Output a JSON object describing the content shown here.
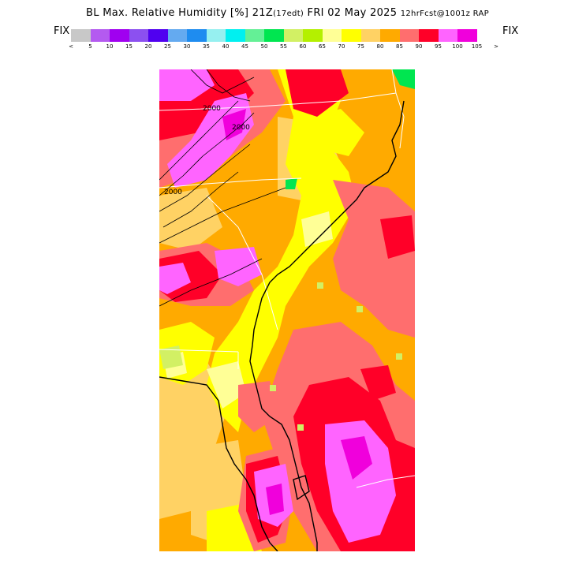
{
  "header": {
    "title_main": "BL Max. Relative Humidity [%] 21Z",
    "title_paren": "(17edt)",
    "title_date": " FRI 02 May 2025 ",
    "title_fcst": "12hrFcst@1001z RAP"
  },
  "legend": {
    "fix_left": "FIX",
    "fix_right": "FIX",
    "colors": [
      "#c8c8c8",
      "#b45af0",
      "#a000f0",
      "#8c50f0",
      "#5000f0",
      "#64aaf0",
      "#1e8cf0",
      "#96f0f0",
      "#00f0f0",
      "#64f096",
      "#00e650",
      "#d2f064",
      "#b4f000",
      "#ffff96",
      "#ffff00",
      "#ffd264",
      "#ffaa00",
      "#ff6e6e",
      "#ff0028",
      "#ff64ff",
      "#f000dc"
    ],
    "tick_labels": [
      "<",
      "5",
      "10",
      "15",
      "20",
      "25",
      "30",
      "35",
      "40",
      "45",
      "50",
      "55",
      "60",
      "65",
      "70",
      "75",
      "80",
      "85",
      "90",
      "95",
      "100",
      "105",
      ">"
    ]
  },
  "map": {
    "field_colors": {
      "base": "#ffaa00",
      "rh75": "#ffd264",
      "rh70": "#ffff00",
      "rh65": "#ffff96",
      "rh85": "#ff6e6e",
      "rh90": "#ff0028",
      "rh95": "#ff64ff",
      "rh100": "#f000dc",
      "green_light": "#d2f064",
      "green": "#00e650"
    },
    "contour_labels": [
      "2000",
      "2000",
      "2000"
    ]
  }
}
